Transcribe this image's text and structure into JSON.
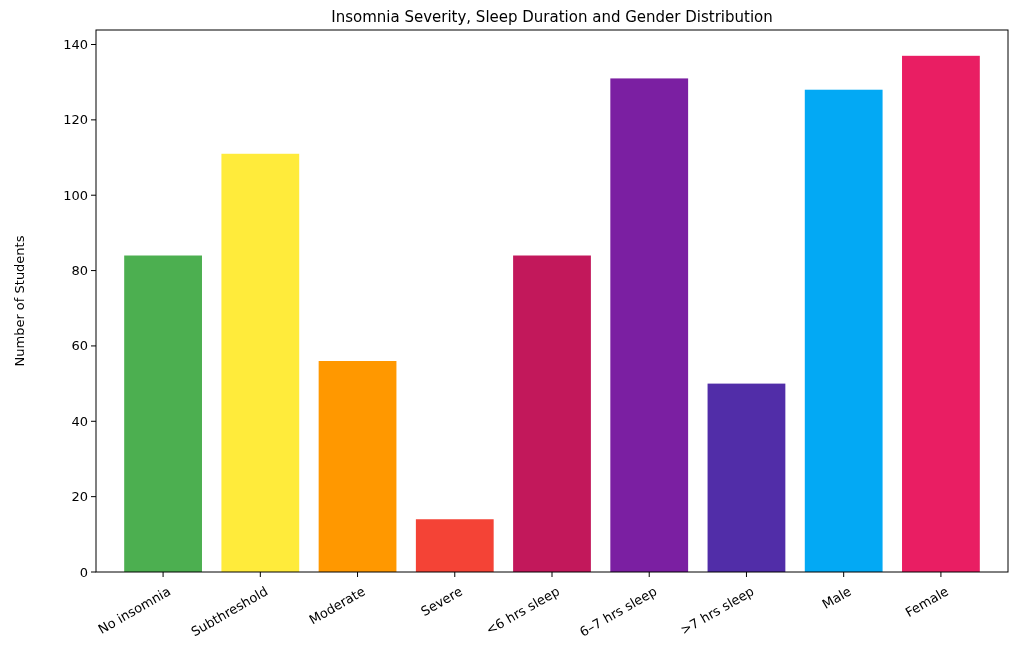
{
  "chart_data": {
    "type": "bar",
    "title": "Insomnia Severity, Sleep Duration and Gender Distribution",
    "ylabel": "Number of Students",
    "categories": [
      "No insomnia",
      "Subthreshold",
      "Moderate",
      "Severe",
      "<6 hrs sleep",
      "6–7 hrs sleep",
      ">7 hrs sleep",
      "Male",
      "Female"
    ],
    "values": [
      84,
      111,
      56,
      14,
      84,
      131,
      50,
      128,
      137
    ],
    "colors": [
      "#4caf50",
      "#ffeb3b",
      "#ff9800",
      "#f44336",
      "#c2185b",
      "#7b1fa2",
      "#512da8",
      "#03a9f4",
      "#e91e63"
    ],
    "ylim": [
      0,
      143.85
    ],
    "yticks": [
      0,
      20,
      40,
      60,
      80,
      100,
      120,
      140
    ],
    "grid": false
  }
}
